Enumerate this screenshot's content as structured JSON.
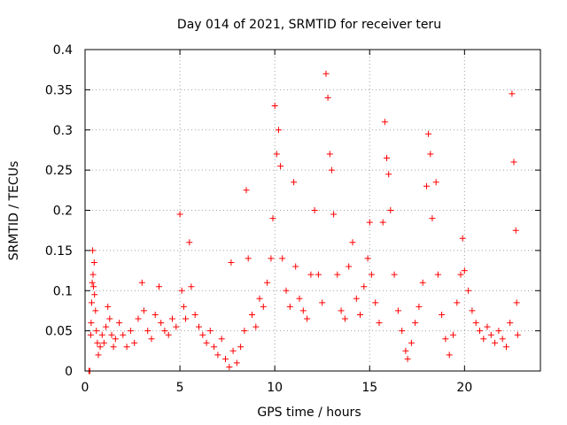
{
  "chart_data": {
    "type": "scatter",
    "title": "Day 014 of 2021, SRMTID for receiver teru",
    "xlabel": "GPS time / hours",
    "ylabel": "SRMTID / TECUs",
    "xlim": [
      0,
      24
    ],
    "ylim": [
      0,
      0.4
    ],
    "x_ticks": [
      0,
      5,
      10,
      15,
      20
    ],
    "x_tick_labels": [
      "0",
      "5",
      "10",
      "15",
      "20"
    ],
    "y_ticks": [
      0,
      0.05,
      0.1,
      0.15,
      0.2,
      0.25,
      0.3,
      0.35,
      0.4
    ],
    "y_tick_labels": [
      "0",
      "0.05",
      "0.1",
      "0.15",
      "0.2",
      "0.25",
      "0.3",
      "0.35",
      "0.4"
    ],
    "grid": true,
    "legend": "none",
    "marker": "plus",
    "color": "#ff0000",
    "series": [
      {
        "points": [
          [
            0.2,
            0.0
          ],
          [
            0.25,
            0.0
          ],
          [
            0.3,
            0.045
          ],
          [
            0.32,
            0.06
          ],
          [
            0.35,
            0.085
          ],
          [
            0.38,
            0.11
          ],
          [
            0.4,
            0.15
          ],
          [
            0.42,
            0.12
          ],
          [
            0.45,
            0.105
          ],
          [
            0.48,
            0.135
          ],
          [
            0.5,
            0.095
          ],
          [
            0.55,
            0.075
          ],
          [
            0.6,
            0.05
          ],
          [
            0.65,
            0.035
          ],
          [
            0.7,
            0.02
          ],
          [
            0.8,
            0.03
          ],
          [
            0.9,
            0.045
          ],
          [
            1.0,
            0.035
          ],
          [
            1.1,
            0.055
          ],
          [
            1.2,
            0.08
          ],
          [
            1.3,
            0.065
          ],
          [
            1.4,
            0.045
          ],
          [
            1.5,
            0.03
          ],
          [
            1.6,
            0.04
          ],
          [
            1.8,
            0.06
          ],
          [
            2.0,
            0.045
          ],
          [
            2.2,
            0.03
          ],
          [
            2.4,
            0.05
          ],
          [
            2.6,
            0.035
          ],
          [
            2.8,
            0.065
          ],
          [
            3.0,
            0.11
          ],
          [
            3.1,
            0.075
          ],
          [
            3.3,
            0.05
          ],
          [
            3.5,
            0.04
          ],
          [
            3.7,
            0.07
          ],
          [
            3.9,
            0.105
          ],
          [
            4.0,
            0.06
          ],
          [
            4.2,
            0.05
          ],
          [
            4.4,
            0.045
          ],
          [
            4.6,
            0.065
          ],
          [
            4.8,
            0.055
          ],
          [
            5.0,
            0.195
          ],
          [
            5.1,
            0.1
          ],
          [
            5.2,
            0.08
          ],
          [
            5.3,
            0.065
          ],
          [
            5.5,
            0.16
          ],
          [
            5.6,
            0.105
          ],
          [
            5.8,
            0.07
          ],
          [
            6.0,
            0.055
          ],
          [
            6.2,
            0.045
          ],
          [
            6.4,
            0.035
          ],
          [
            6.6,
            0.05
          ],
          [
            6.8,
            0.03
          ],
          [
            7.0,
            0.02
          ],
          [
            7.2,
            0.04
          ],
          [
            7.4,
            0.015
          ],
          [
            7.6,
            0.005
          ],
          [
            7.7,
            0.135
          ],
          [
            7.8,
            0.025
          ],
          [
            8.0,
            0.01
          ],
          [
            8.2,
            0.03
          ],
          [
            8.4,
            0.05
          ],
          [
            8.5,
            0.225
          ],
          [
            8.6,
            0.14
          ],
          [
            8.8,
            0.07
          ],
          [
            9.0,
            0.055
          ],
          [
            9.2,
            0.09
          ],
          [
            9.4,
            0.08
          ],
          [
            9.6,
            0.11
          ],
          [
            9.8,
            0.14
          ],
          [
            9.9,
            0.19
          ],
          [
            10.0,
            0.33
          ],
          [
            10.1,
            0.27
          ],
          [
            10.2,
            0.3
          ],
          [
            10.3,
            0.255
          ],
          [
            10.4,
            0.14
          ],
          [
            10.6,
            0.1
          ],
          [
            10.8,
            0.08
          ],
          [
            11.0,
            0.235
          ],
          [
            11.1,
            0.13
          ],
          [
            11.3,
            0.09
          ],
          [
            11.5,
            0.075
          ],
          [
            11.7,
            0.065
          ],
          [
            11.9,
            0.12
          ],
          [
            12.1,
            0.2
          ],
          [
            12.3,
            0.12
          ],
          [
            12.5,
            0.085
          ],
          [
            12.7,
            0.37
          ],
          [
            12.8,
            0.34
          ],
          [
            12.9,
            0.27
          ],
          [
            13.0,
            0.25
          ],
          [
            13.1,
            0.195
          ],
          [
            13.3,
            0.12
          ],
          [
            13.5,
            0.075
          ],
          [
            13.7,
            0.065
          ],
          [
            13.9,
            0.13
          ],
          [
            14.1,
            0.16
          ],
          [
            14.3,
            0.09
          ],
          [
            14.5,
            0.07
          ],
          [
            14.7,
            0.105
          ],
          [
            14.9,
            0.14
          ],
          [
            15.0,
            0.185
          ],
          [
            15.1,
            0.12
          ],
          [
            15.3,
            0.085
          ],
          [
            15.5,
            0.06
          ],
          [
            15.7,
            0.185
          ],
          [
            15.8,
            0.31
          ],
          [
            15.9,
            0.265
          ],
          [
            16.0,
            0.245
          ],
          [
            16.1,
            0.2
          ],
          [
            16.3,
            0.12
          ],
          [
            16.5,
            0.075
          ],
          [
            16.7,
            0.05
          ],
          [
            16.9,
            0.025
          ],
          [
            17.0,
            0.015
          ],
          [
            17.2,
            0.035
          ],
          [
            17.4,
            0.06
          ],
          [
            17.6,
            0.08
          ],
          [
            17.8,
            0.11
          ],
          [
            18.0,
            0.23
          ],
          [
            18.1,
            0.295
          ],
          [
            18.2,
            0.27
          ],
          [
            18.3,
            0.19
          ],
          [
            18.5,
            0.235
          ],
          [
            18.6,
            0.12
          ],
          [
            18.8,
            0.07
          ],
          [
            19.0,
            0.04
          ],
          [
            19.2,
            0.02
          ],
          [
            19.4,
            0.045
          ],
          [
            19.6,
            0.085
          ],
          [
            19.8,
            0.12
          ],
          [
            19.9,
            0.165
          ],
          [
            20.0,
            0.125
          ],
          [
            20.2,
            0.1
          ],
          [
            20.4,
            0.075
          ],
          [
            20.6,
            0.06
          ],
          [
            20.8,
            0.05
          ],
          [
            21.0,
            0.04
          ],
          [
            21.2,
            0.055
          ],
          [
            21.4,
            0.045
          ],
          [
            21.6,
            0.035
          ],
          [
            21.8,
            0.05
          ],
          [
            22.0,
            0.04
          ],
          [
            22.2,
            0.03
          ],
          [
            22.4,
            0.06
          ],
          [
            22.5,
            0.345
          ],
          [
            22.6,
            0.26
          ],
          [
            22.7,
            0.175
          ],
          [
            22.75,
            0.085
          ],
          [
            22.8,
            0.045
          ]
        ]
      }
    ]
  }
}
